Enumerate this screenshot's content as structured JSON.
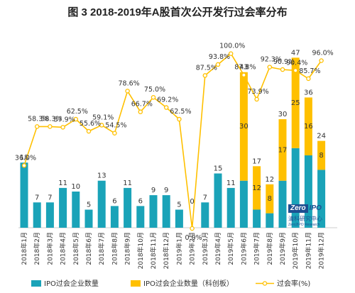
{
  "chart_data": {
    "type": "bar",
    "title": "图 3 2018-2019年A股首次公开发行过会率分布",
    "categories": [
      "2018年1月",
      "2018年2月",
      "2018年3月",
      "2018年4月",
      "2018年5月",
      "2018年6月",
      "2018年7月",
      "2018年8月",
      "2018年9月",
      "2018年10月",
      "2018年11月",
      "2018年12月",
      "2019年1月",
      "2019年2月",
      "2019年3月",
      "2019年4月",
      "2019年5月",
      "2019年6月",
      "2019年7月",
      "2019年8月",
      "2019年9月",
      "2019年10月",
      "2019年11月",
      "2019年12月"
    ],
    "series": [
      {
        "name": "IPO过会企业数量",
        "type": "bar",
        "color": "#1aa3b8",
        "stack": "ipo",
        "values": [
          18,
          7,
          7,
          11,
          10,
          5,
          13,
          6,
          11,
          6,
          9,
          9,
          5,
          0,
          7,
          15,
          11,
          13,
          5,
          4,
          13,
          22,
          20,
          16
        ]
      },
      {
        "name": "IPO过会企业数量（科创板）",
        "type": "bar",
        "color": "#ffc000",
        "stack": "ipo",
        "values": [
          0,
          0,
          0,
          0,
          0,
          0,
          0,
          0,
          0,
          0,
          0,
          0,
          0,
          0,
          0,
          0,
          0,
          30,
          12,
          8,
          17,
          25,
          16,
          8
        ]
      },
      {
        "name": "过会率(%)",
        "type": "line",
        "axis": "right",
        "color": "#ffc000",
        "values": [
          36.0,
          58.3,
          58.3,
          57.9,
          62.5,
          55.6,
          59.1,
          54.5,
          78.6,
          66.7,
          75.0,
          69.2,
          62.5,
          0.0,
          87.5,
          93.8,
          100.0,
          87.8,
          73.9,
          92.3,
          90.9,
          90.4,
          85.7,
          96.0
        ]
      }
    ],
    "bar_labels": {
      "total": [
        "18",
        "7",
        "7",
        "11",
        "10",
        "5",
        "13",
        "6",
        "11",
        "6",
        "9",
        "9",
        "5",
        "0",
        "7",
        "15",
        "11",
        "43",
        "17",
        "12",
        "30",
        "47",
        "36",
        "24"
      ],
      "star": [
        "",
        "",
        "",
        "",
        "",
        "",
        "",
        "",
        "",
        "",
        "",
        "",
        "",
        "",
        "",
        "",
        "",
        "30",
        "12",
        "8",
        "17",
        "25",
        "16",
        "8"
      ]
    },
    "rate_labels": [
      "36.0%",
      "58.3%",
      "58.3%",
      "57.9%",
      "62.5%",
      "55.6%",
      "59.1%",
      "54.5%",
      "78.6%",
      "66.7%",
      "75.0%",
      "69.2%",
      "62.5%",
      "0.0%",
      "87.5%",
      "93.8%",
      "100.0%",
      "87.8%",
      "73.9%",
      "92.3%",
      "90.9%",
      "90.4%",
      "85.7%",
      "96.0%"
    ],
    "ylim_left": [
      0,
      50
    ],
    "ylim_right": [
      0,
      110
    ],
    "legend": {
      "placement": "bottom",
      "items": [
        "IPO过会企业数量",
        "IPO过会企业数量（科创板）",
        "过会率(%)"
      ]
    },
    "grid": false
  },
  "watermark": {
    "logo_a": "Zero",
    "logo_b": "IPO",
    "cn": "清科研究中心",
    "en": "Zero2IPO Research"
  }
}
